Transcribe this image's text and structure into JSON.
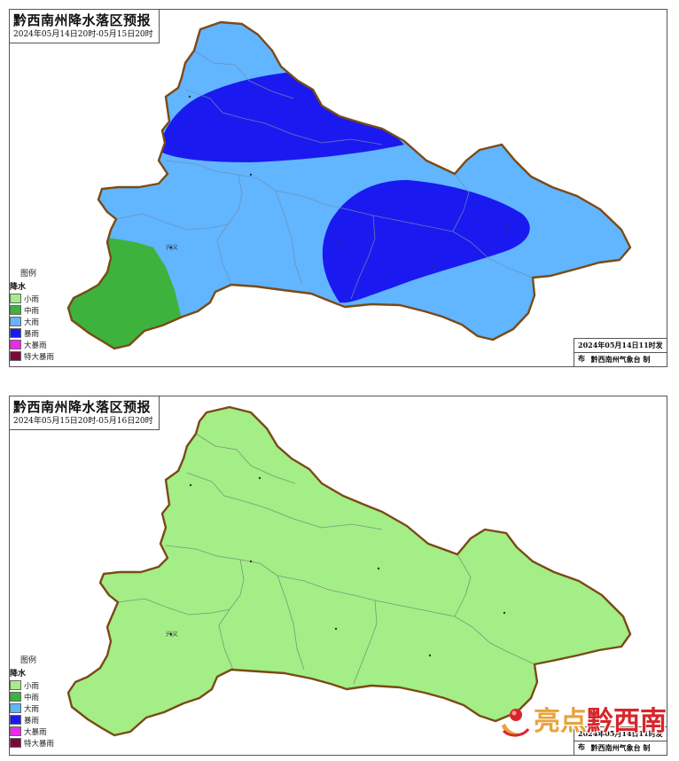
{
  "colors": {
    "light_rain": "#a3ee86",
    "moderate_rain": "#3db33e",
    "heavy_rain": "#62b5ff",
    "rainstorm": "#1a1af0",
    "heavy_rainstorm": "#ee28ee",
    "extreme_rainstorm": "#7a0a3c",
    "border": "#7a4a16"
  },
  "legend_items": [
    {
      "label": "小雨",
      "color": "#a3ee86"
    },
    {
      "label": "中雨",
      "color": "#3db33e"
    },
    {
      "label": "大雨",
      "color": "#62b5ff"
    },
    {
      "label": "暴雨",
      "color": "#1a1af0"
    },
    {
      "label": "大暴雨",
      "color": "#ee28ee"
    },
    {
      "label": "特大暴雨",
      "color": "#7a0a3c"
    }
  ],
  "panel1": {
    "title": "黔西南州降水落区预报",
    "period": "2024年05月14日20时-05月15日20时",
    "legend_title": "图例",
    "legend_subtitle": "降水",
    "issued": "2024年05月14日11时发布",
    "issuer": "黔西南州气象台 制",
    "city_label": "兴义"
  },
  "panel2": {
    "title": "黔西南州降水落区预报",
    "period": "2024年05月15日20时-05月16日20时",
    "legend_title": "图例",
    "legend_subtitle": "降水",
    "issued": "2024年05月14日11时发布",
    "issuer": "黔西南州气象台 制",
    "city_label": "兴义"
  },
  "watermark": {
    "text_a": "亮点",
    "text_b": "黔西南"
  }
}
